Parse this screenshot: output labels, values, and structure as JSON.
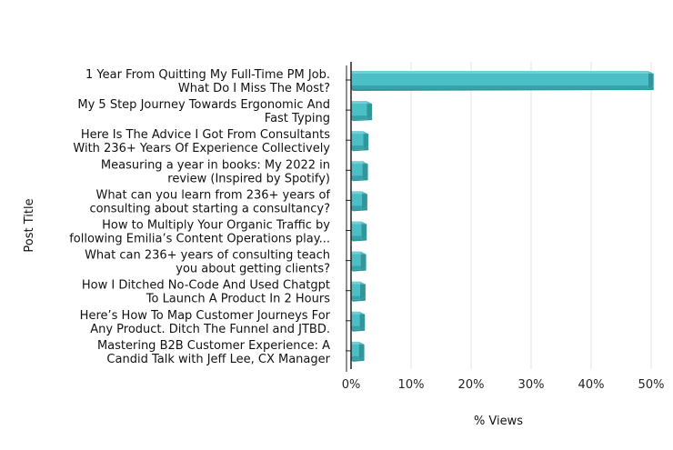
{
  "chart_data": {
    "type": "bar",
    "orientation": "horizontal",
    "categories": [
      [
        "1 Year From Quitting My Full-Time PM Job.",
        "What Do I Miss The Most?"
      ],
      [
        "My 5 Step Journey Towards Ergonomic And",
        "Fast Typing"
      ],
      [
        "Here Is The Advice I Got From Consultants",
        "With 236+ Years Of Experience Collectively"
      ],
      [
        "Measuring a year in books: My 2022 in",
        "review (Inspired by Spotify)"
      ],
      [
        "What can you learn from 236+ years of",
        "consulting about starting a consultancy?"
      ],
      [
        "How to Multiply Your Organic Traffic by",
        "following Emilia’s Content Operations play..."
      ],
      [
        "What can 236+ years of consulting teach",
        "you about getting clients?"
      ],
      [
        "How I Ditched No-Code And Used Chatgpt",
        "To Launch A Product In 2 Hours"
      ],
      [
        "Here’s How To Map Customer Journeys For",
        "Any Product. Ditch The Funnel and JTBD."
      ],
      [
        "Mastering B2B Customer Experience: A",
        "Candid Talk with Jeff Lee, CX Manager"
      ]
    ],
    "values": [
      49.5,
      2.6,
      2.0,
      1.9,
      1.8,
      1.7,
      1.6,
      1.5,
      1.4,
      1.3
    ],
    "xlabel": "% Views",
    "ylabel": "Post Title",
    "xlim": [
      0,
      50
    ],
    "xticks": [
      {
        "value": 0,
        "label": "0%"
      },
      {
        "value": 10,
        "label": "10%"
      },
      {
        "value": 20,
        "label": "20%"
      },
      {
        "value": 30,
        "label": "30%"
      },
      {
        "value": 40,
        "label": "40%"
      },
      {
        "value": 50,
        "label": "50%"
      }
    ],
    "grid": "vertical",
    "colors": {
      "bar": "#4bbfc6",
      "bar_top": "#8fdbe0",
      "bar_side": "#2f969c",
      "grid": "#e6e6e6",
      "axis": "#222222"
    }
  }
}
